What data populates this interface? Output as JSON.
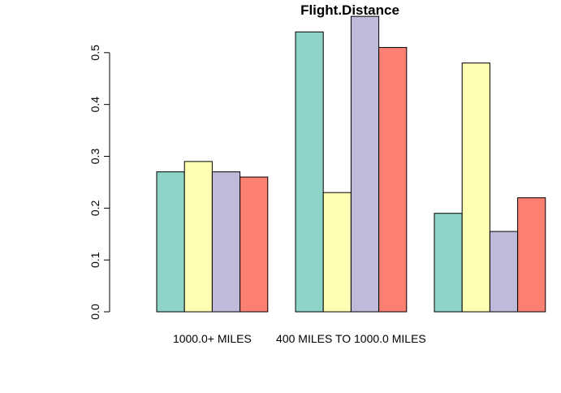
{
  "chart_data": {
    "type": "bar",
    "title": "Flight.Distance",
    "categories": [
      "1000.0+ MILES",
      "400 MILES TO 1000.0 MILES",
      null
    ],
    "series": [
      {
        "color": "#8dd3c7",
        "values": [
          0.27,
          0.54,
          0.19
        ]
      },
      {
        "color": "#ffffb3",
        "values": [
          0.29,
          0.23,
          0.48
        ]
      },
      {
        "color": "#bebada",
        "values": [
          0.27,
          0.57,
          0.155
        ]
      },
      {
        "color": "#fb8072",
        "values": [
          0.26,
          0.51,
          0.22
        ]
      }
    ],
    "ylim": [
      0,
      0.6
    ],
    "yticks": [
      {
        "value": 0,
        "label": "0.0"
      },
      0.1,
      0.2,
      0.3,
      0.4,
      0.5
    ]
  }
}
